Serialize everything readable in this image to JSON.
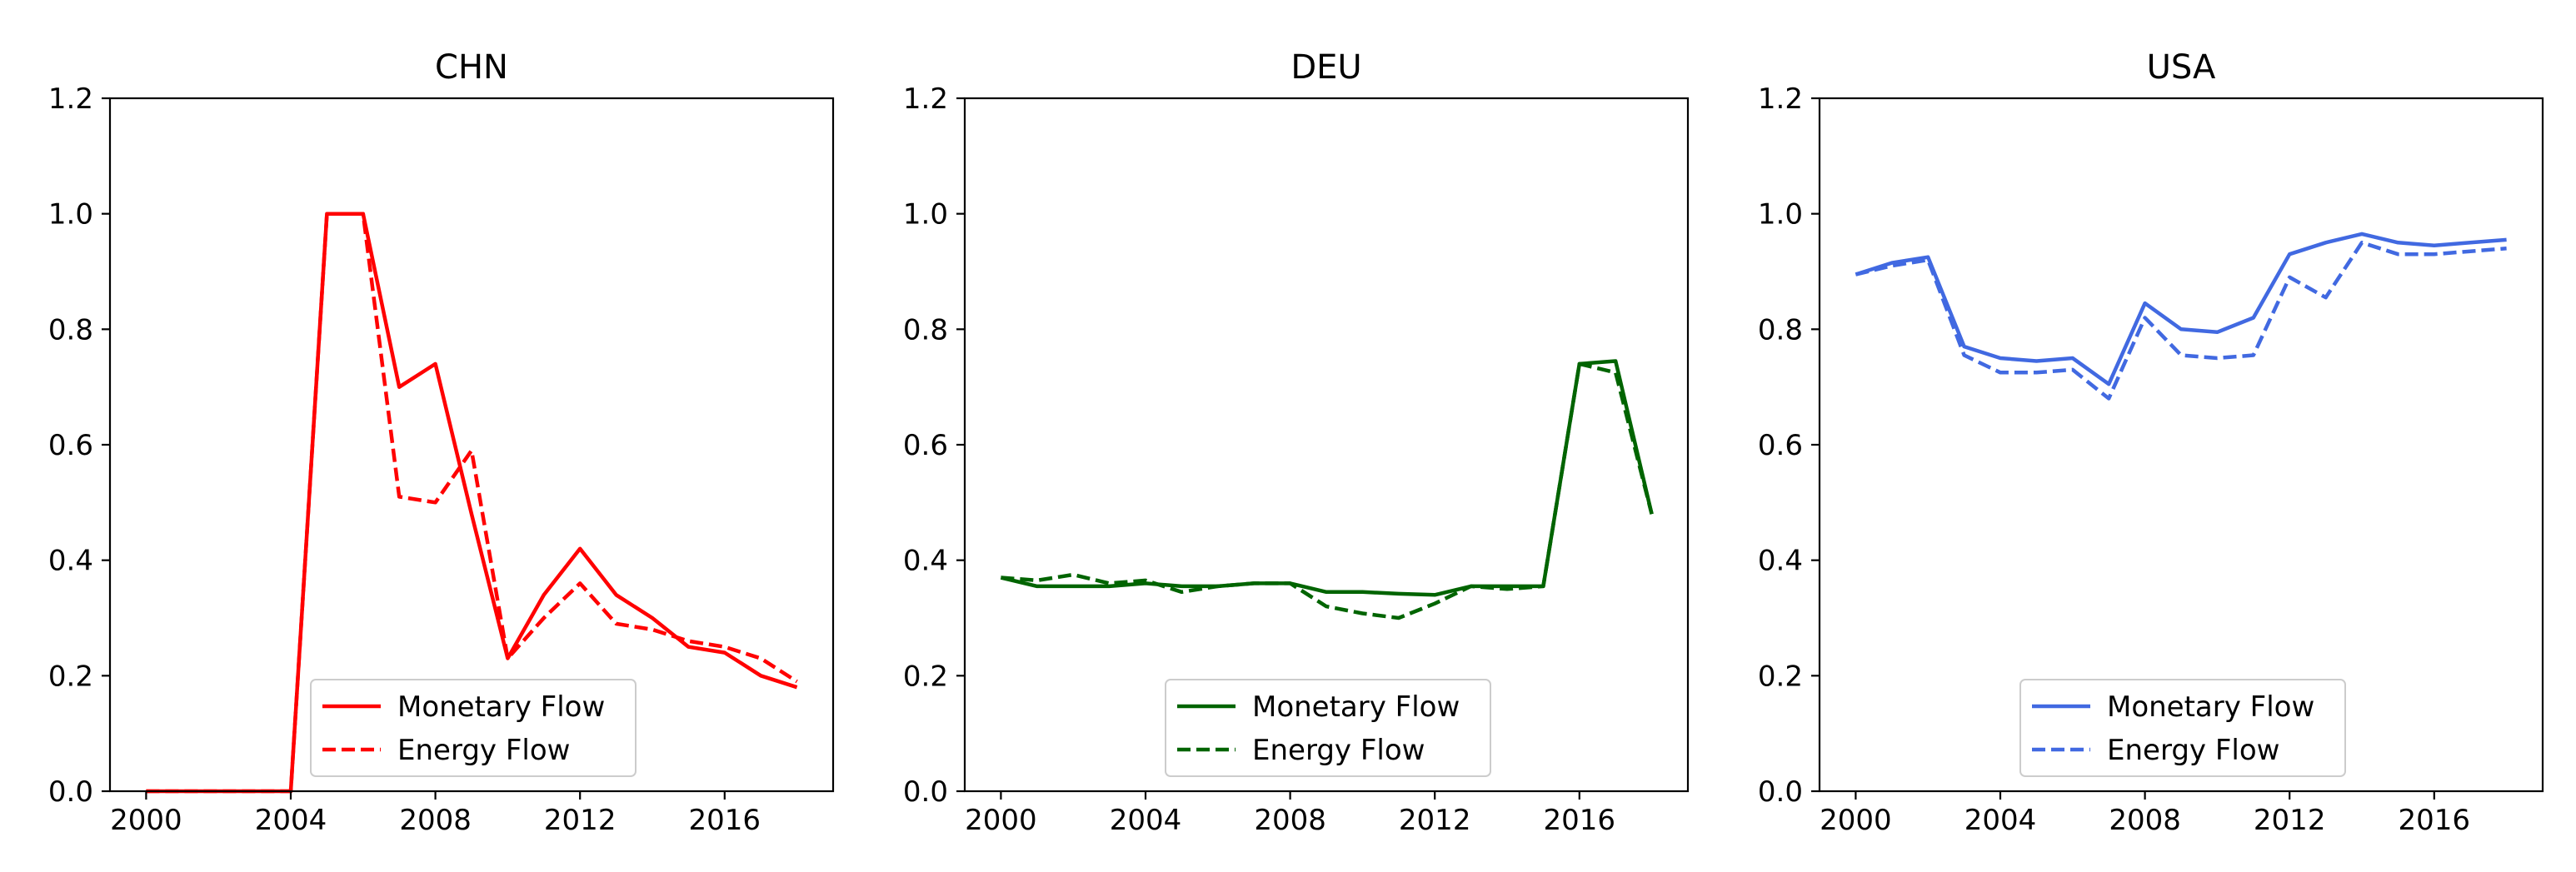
{
  "chart_data": [
    {
      "type": "line",
      "title": "CHN",
      "color": "#ff0000",
      "xlim": [
        1999,
        2019
      ],
      "ylim": [
        0.0,
        1.2
      ],
      "xticks": [
        2000,
        2004,
        2008,
        2012,
        2016
      ],
      "yticks": [
        0.0,
        0.2,
        0.4,
        0.6,
        0.8,
        1.0,
        1.2
      ],
      "legend_position": "lower-center",
      "grid": false,
      "series": [
        {
          "name": "Monetary Flow",
          "style": "solid",
          "x": [
            2000,
            2001,
            2002,
            2003,
            2004,
            2005,
            2006,
            2007,
            2008,
            2009,
            2010,
            2011,
            2012,
            2013,
            2014,
            2015,
            2016,
            2017,
            2018
          ],
          "y": [
            0.0,
            0.0,
            0.0,
            0.0,
            0.0,
            1.0,
            1.0,
            0.7,
            0.74,
            0.48,
            0.23,
            0.34,
            0.42,
            0.34,
            0.3,
            0.25,
            0.24,
            0.2,
            0.18
          ]
        },
        {
          "name": "Energy Flow",
          "style": "dashed",
          "x": [
            2000,
            2001,
            2002,
            2003,
            2004,
            2005,
            2006,
            2007,
            2008,
            2009,
            2010,
            2011,
            2012,
            2013,
            2014,
            2015,
            2016,
            2017,
            2018
          ],
          "y": [
            0.0,
            0.0,
            0.0,
            0.0,
            0.0,
            1.0,
            1.0,
            0.51,
            0.5,
            0.59,
            0.23,
            0.3,
            0.36,
            0.29,
            0.28,
            0.26,
            0.25,
            0.23,
            0.19
          ]
        }
      ]
    },
    {
      "type": "line",
      "title": "DEU",
      "color": "#006400",
      "xlim": [
        1999,
        2019
      ],
      "ylim": [
        0.0,
        1.2
      ],
      "xticks": [
        2000,
        2004,
        2008,
        2012,
        2016
      ],
      "yticks": [
        0.0,
        0.2,
        0.4,
        0.6,
        0.8,
        1.0,
        1.2
      ],
      "legend_position": "lower-center",
      "grid": false,
      "series": [
        {
          "name": "Monetary Flow",
          "style": "solid",
          "x": [
            2000,
            2001,
            2002,
            2003,
            2004,
            2005,
            2006,
            2007,
            2008,
            2009,
            2010,
            2011,
            2012,
            2013,
            2014,
            2015,
            2016,
            2017,
            2018
          ],
          "y": [
            0.37,
            0.355,
            0.355,
            0.355,
            0.36,
            0.355,
            0.355,
            0.36,
            0.36,
            0.345,
            0.345,
            0.342,
            0.34,
            0.355,
            0.355,
            0.355,
            0.74,
            0.745,
            0.48
          ]
        },
        {
          "name": "Energy Flow",
          "style": "dashed",
          "x": [
            2000,
            2001,
            2002,
            2003,
            2004,
            2005,
            2006,
            2007,
            2008,
            2009,
            2010,
            2011,
            2012,
            2013,
            2014,
            2015,
            2016,
            2017,
            2018
          ],
          "y": [
            0.37,
            0.365,
            0.375,
            0.36,
            0.365,
            0.345,
            0.355,
            0.36,
            0.36,
            0.32,
            0.308,
            0.3,
            0.325,
            0.355,
            0.35,
            0.355,
            0.74,
            0.725,
            0.48
          ]
        }
      ]
    },
    {
      "type": "line",
      "title": "USA",
      "color": "#4169e1",
      "xlim": [
        1999,
        2019
      ],
      "ylim": [
        0.0,
        1.2
      ],
      "xticks": [
        2000,
        2004,
        2008,
        2012,
        2016
      ],
      "yticks": [
        0.0,
        0.2,
        0.4,
        0.6,
        0.8,
        1.0,
        1.2
      ],
      "legend_position": "lower-center",
      "grid": false,
      "series": [
        {
          "name": "Monetary Flow",
          "style": "solid",
          "x": [
            2000,
            2001,
            2002,
            2003,
            2004,
            2005,
            2006,
            2007,
            2008,
            2009,
            2010,
            2011,
            2012,
            2013,
            2014,
            2015,
            2016,
            2017,
            2018
          ],
          "y": [
            0.895,
            0.915,
            0.925,
            0.77,
            0.75,
            0.745,
            0.75,
            0.705,
            0.845,
            0.8,
            0.795,
            0.82,
            0.93,
            0.95,
            0.965,
            0.95,
            0.945,
            0.95,
            0.955
          ]
        },
        {
          "name": "Energy Flow",
          "style": "dashed",
          "x": [
            2000,
            2001,
            2002,
            2003,
            2004,
            2005,
            2006,
            2007,
            2008,
            2009,
            2010,
            2011,
            2012,
            2013,
            2014,
            2015,
            2016,
            2017,
            2018
          ],
          "y": [
            0.895,
            0.91,
            0.92,
            0.755,
            0.725,
            0.725,
            0.73,
            0.68,
            0.82,
            0.755,
            0.75,
            0.755,
            0.89,
            0.855,
            0.95,
            0.93,
            0.93,
            0.935,
            0.94
          ]
        }
      ]
    }
  ]
}
